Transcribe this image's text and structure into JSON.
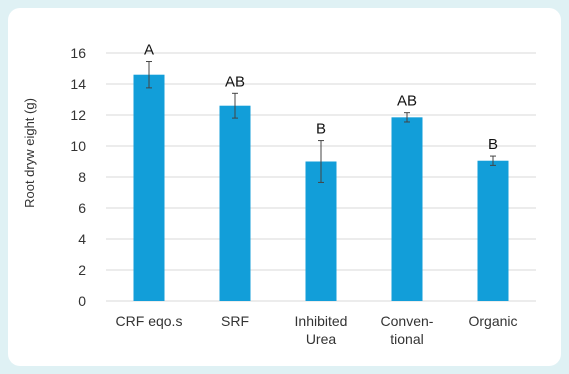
{
  "colors": {
    "bar": "#129ed9",
    "grid": "#d9d9d9",
    "error": "#444444",
    "background": "#dff1f4"
  },
  "chart_data": {
    "type": "bar",
    "title": "",
    "xlabel": "",
    "ylabel": "Root dryw eight (g)",
    "ylim": [
      0,
      16
    ],
    "yticks": [
      0,
      2,
      4,
      6,
      8,
      10,
      12,
      14,
      16
    ],
    "grid": true,
    "categories": [
      [
        "CRF eqo.s"
      ],
      [
        "SRF"
      ],
      [
        "Inhibited",
        "Urea"
      ],
      [
        "Conven-",
        "tional"
      ],
      [
        "Organic"
      ]
    ],
    "values": [
      14.6,
      12.6,
      9.0,
      11.85,
      9.05
    ],
    "errors": [
      0.85,
      0.8,
      1.35,
      0.3,
      0.3
    ],
    "significance": [
      "A",
      "AB",
      "B",
      "AB",
      "B"
    ]
  }
}
